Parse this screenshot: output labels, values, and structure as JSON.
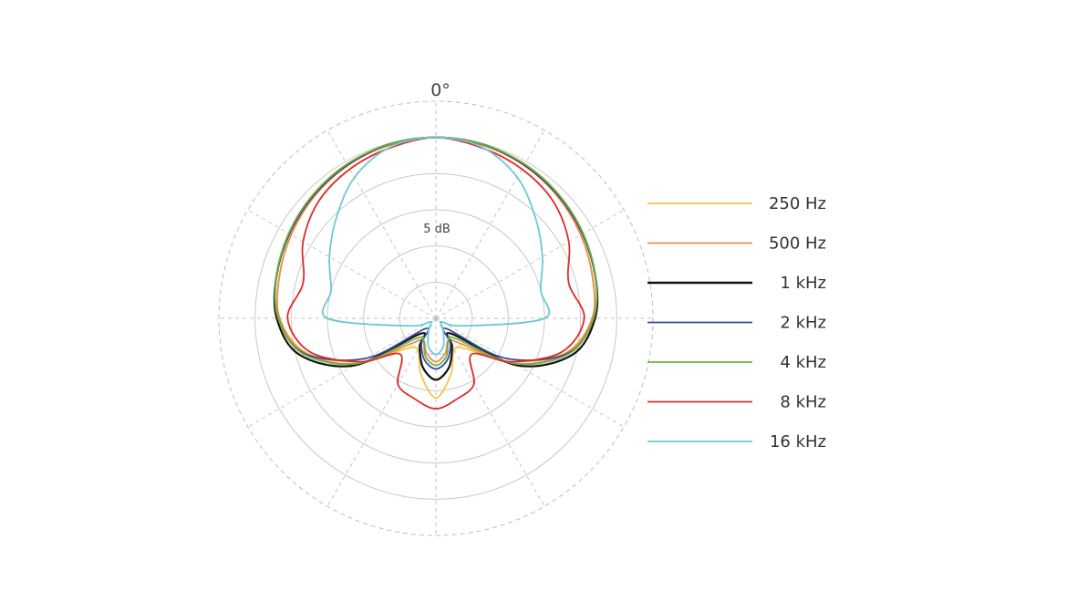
{
  "chart_data": {
    "type": "polar-line",
    "top_angle_label": "0°",
    "ring_label": "5 dB",
    "grid": true,
    "legend_position": "right",
    "r_max_db": 30,
    "r_step_db": 5,
    "angle_step_deg": 30,
    "angles_deg": [
      0,
      15,
      30,
      45,
      60,
      75,
      90,
      105,
      120,
      135,
      150,
      165,
      180
    ],
    "series": [
      {
        "name": "250 Hz",
        "color": "#f5c542",
        "db": [
          25.0,
          24.8,
          24.4,
          23.8,
          23.1,
          22.4,
          21.6,
          18.5,
          12.0,
          6.0,
          5.0,
          8.0,
          11.0
        ]
      },
      {
        "name": "500 Hz",
        "color": "#f08b4c",
        "db": [
          25.0,
          24.8,
          24.4,
          23.8,
          23.1,
          22.4,
          21.6,
          18.7,
          12.5,
          5.0,
          3.5,
          5.0,
          6.0
        ]
      },
      {
        "name": "1 kHz",
        "color": "#111111",
        "db": [
          25.0,
          24.9,
          24.5,
          24.0,
          23.4,
          22.8,
          22.0,
          19.5,
          13.0,
          3.0,
          4.5,
          7.0,
          8.5
        ]
      },
      {
        "name": "2 kHz",
        "color": "#3b4a9e",
        "db": [
          25.0,
          24.9,
          24.5,
          24.0,
          23.4,
          22.8,
          21.8,
          18.8,
          11.0,
          2.0,
          4.0,
          6.0,
          7.0
        ]
      },
      {
        "name": "4 kHz",
        "color": "#6db33f",
        "db": [
          25.0,
          24.9,
          24.6,
          24.1,
          23.5,
          22.8,
          21.8,
          19.0,
          12.5,
          4.0,
          3.5,
          5.5,
          6.5
        ]
      },
      {
        "name": "8 kHz",
        "color": "#e02a2a",
        "db": [
          25.0,
          24.4,
          23.8,
          22.9,
          21.2,
          19.0,
          20.5,
          18.0,
          12.0,
          7.0,
          10.5,
          11.5,
          12.5
        ]
      },
      {
        "name": "16 kHz",
        "color": "#6cc8d8",
        "db": [
          25.0,
          24.5,
          22.5,
          19.5,
          17.0,
          15.0,
          15.0,
          4.0,
          1.0,
          1.0,
          2.0,
          4.0,
          5.0
        ]
      }
    ]
  }
}
